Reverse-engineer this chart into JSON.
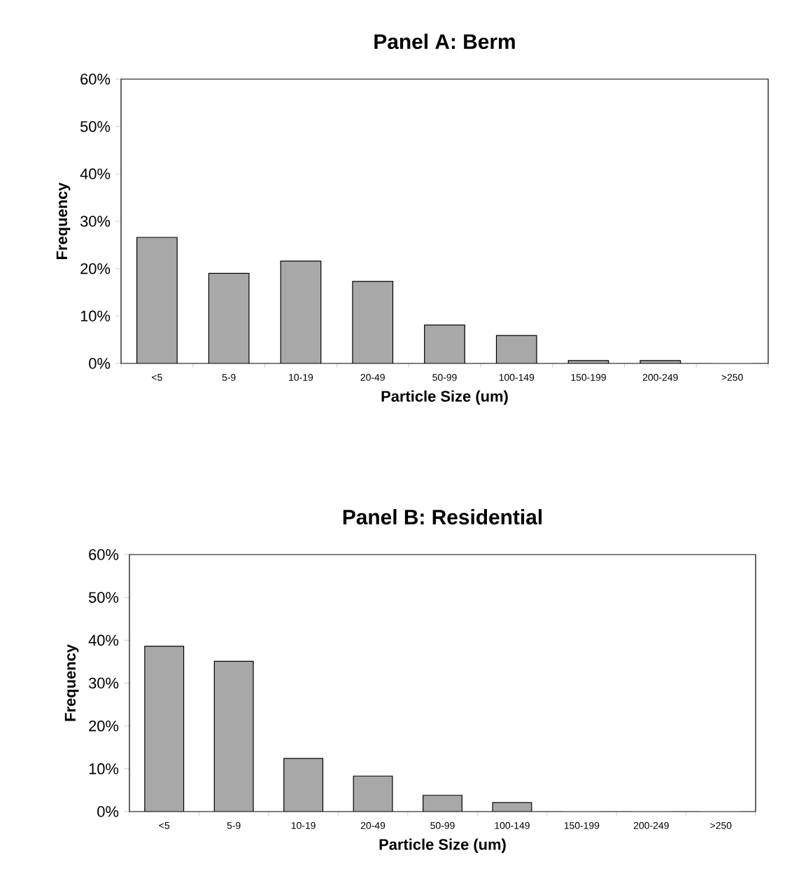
{
  "chart_data": [
    {
      "type": "bar",
      "title": "Panel A:  Berm",
      "xlabel": "Particle Size (um)",
      "ylabel": "Frequency",
      "categories": [
        "<5",
        "5-9",
        "10-19",
        "20-49",
        "50-99",
        "100-149",
        "150-199",
        "200-249",
        ">250"
      ],
      "values": [
        26.6,
        19.0,
        21.6,
        17.3,
        8.1,
        5.9,
        0.6,
        0.6,
        0
      ],
      "color": "#a8a8a8",
      "ylim": [
        0,
        60
      ],
      "yticks": [
        {
          "value": 0,
          "label": "0%"
        },
        {
          "value": 10,
          "label": "10%"
        },
        {
          "value": 20,
          "label": "20%"
        },
        {
          "value": 30,
          "label": "30%"
        },
        {
          "value": 40,
          "label": "40%"
        },
        {
          "value": 50,
          "label": "50%"
        },
        {
          "value": 60,
          "label": "60%"
        }
      ]
    },
    {
      "type": "bar",
      "title": "Panel B:  Residential",
      "xlabel": "Particle Size (um)",
      "ylabel": "Frequency",
      "categories": [
        "<5",
        "5-9",
        "10-19",
        "20-49",
        "50-99",
        "100-149",
        "150-199",
        "200-249",
        ">250"
      ],
      "values": [
        38.6,
        35.1,
        12.4,
        8.3,
        3.8,
        2.1,
        0,
        0,
        0
      ],
      "color": "#a8a8a8",
      "ylim": [
        0,
        60
      ],
      "yticks": [
        {
          "value": 0,
          "label": "0%"
        },
        {
          "value": 10,
          "label": "10%"
        },
        {
          "value": 20,
          "label": "20%"
        },
        {
          "value": 30,
          "label": "30%"
        },
        {
          "value": 40,
          "label": "40%"
        },
        {
          "value": 50,
          "label": "50%"
        },
        {
          "value": 60,
          "label": "60%"
        }
      ]
    }
  ]
}
